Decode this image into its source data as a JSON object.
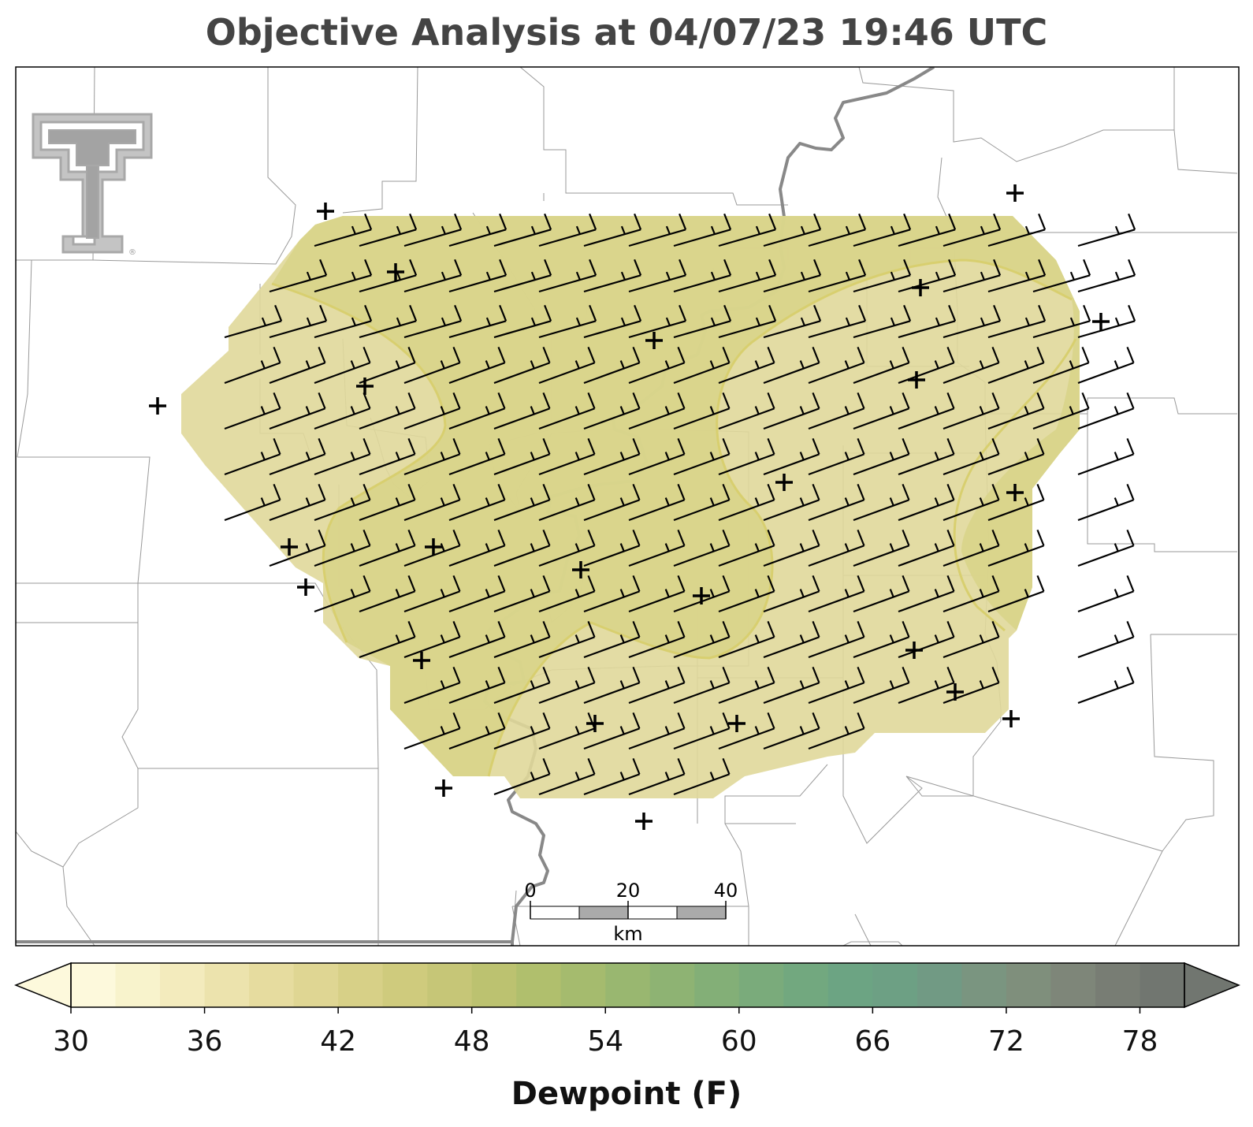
{
  "title": "Objective Analysis at 04/07/23 19:46 UTC",
  "colorbar": {
    "label": "Dewpoint (F)",
    "ticks": [
      "30",
      "36",
      "42",
      "48",
      "54",
      "60",
      "66",
      "72",
      "78"
    ],
    "min": 30,
    "max": 80,
    "step": 2,
    "extend": "both",
    "colors": [
      "#fdf9dc",
      "#f8f3cc",
      "#f3ebbd",
      "#ece3ad",
      "#e6dc9f",
      "#dfd693",
      "#d7d087",
      "#cfcb7d",
      "#c6c677",
      "#bcc270",
      "#b0bf6d",
      "#a5bb6e",
      "#99b770",
      "#8eb373",
      "#83af77",
      "#7aab7b",
      "#72a87f",
      "#6ca483",
      "#6da084",
      "#719a84",
      "#7a9580",
      "#7f8f7c",
      "#7e8679",
      "#787d74",
      "#717670"
    ]
  },
  "scale_bar": {
    "labels": [
      "0",
      "20",
      "40"
    ],
    "unit": "km"
  },
  "logo": {
    "name": "double-t-logo",
    "mark": "®"
  },
  "field": {
    "fill_color": "#e0d89a",
    "inner_fill_color": "#d8d48a",
    "contour_color": "#d8cf6f"
  },
  "stations": 30
}
